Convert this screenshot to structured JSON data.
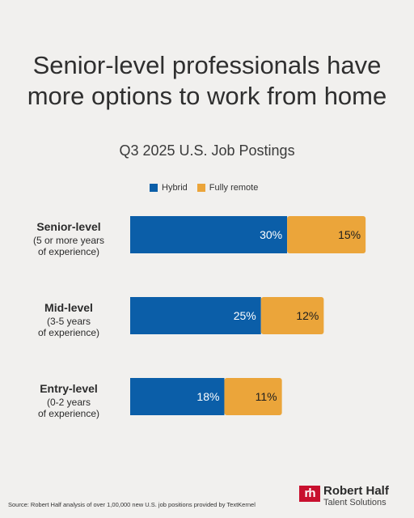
{
  "title_lines": [
    "Senior-level professionals have",
    "more options to work from home"
  ],
  "chart_data": {
    "type": "bar",
    "orientation": "horizontal",
    "stacked": true,
    "title": "Senior-level professionals have more options to work from home",
    "subtitle": "Q3 2025 U.S. Job Postings",
    "categories": [
      {
        "name": "Senior-level",
        "detail": [
          "(5 or more years",
          "of experience)"
        ]
      },
      {
        "name": "Mid-level",
        "detail": [
          "(3-5 years",
          "of experience)"
        ]
      },
      {
        "name": "Entry-level",
        "detail": [
          "(0-2 years",
          "of experience)"
        ]
      }
    ],
    "series": [
      {
        "name": "Hybrid",
        "color": "#0b5ea8",
        "values": [
          30,
          25,
          18
        ],
        "labels": [
          "30%",
          "25%",
          "18%"
        ]
      },
      {
        "name": "Fully remote",
        "color": "#eba53a",
        "values": [
          15,
          12,
          11
        ],
        "labels": [
          "15%",
          "12%",
          "11%"
        ]
      }
    ],
    "legend_position": "top-center",
    "grid": false
  },
  "source": "Source: Robert Half analysis of over 1,00,000 new U.S. job positions provided by TextKernel",
  "logo": {
    "mark": "rh",
    "name": "Robert Half",
    "tagline": "Talent Solutions"
  }
}
